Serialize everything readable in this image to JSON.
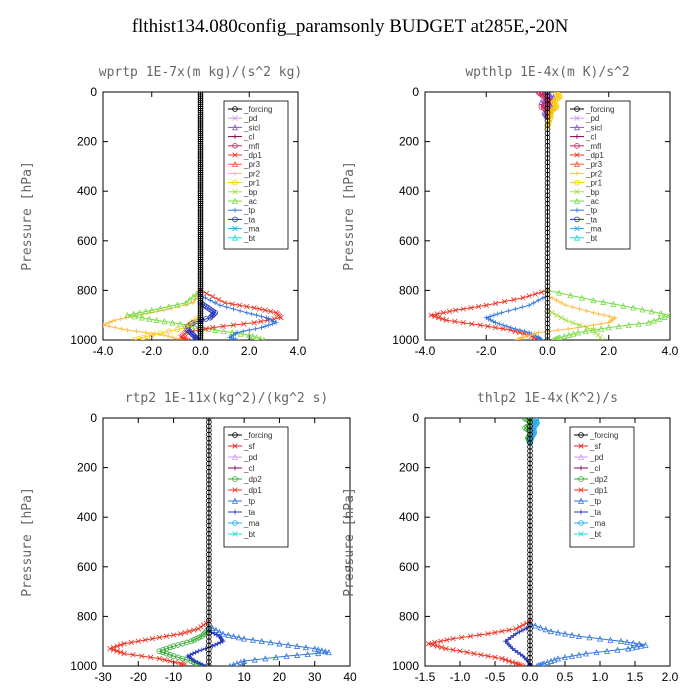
{
  "title": "flthist134.080config_paramsonly  BUDGET at285E,-20N",
  "colors": {
    "forcing": "#000000",
    "pd": "#cc99ee",
    "sicl": "#8855cc",
    "cl": "#880055",
    "mfl": "#cc2255",
    "dp1": "#ee3322",
    "pr3": "#ff5533",
    "pr2": "#ffbb44",
    "pr1": "#ffcc00",
    "bp": "#aadd44",
    "ac": "#77dd44",
    "tp": "#3377dd",
    "ta": "#2233bb",
    "ma": "#22aaee",
    "bt": "#22dddd",
    "sf": "#dd2222",
    "dp2": "#33aa33"
  },
  "chart_data": [
    {
      "type": "line",
      "title": "wprtp  1E-7x(m kg)/(s^2 kg)",
      "ylabel": "Pressure [hPa]",
      "xlim": [
        -4,
        4
      ],
      "ylim": [
        1000,
        0
      ],
      "xticks": [
        -4,
        -2,
        0,
        2,
        4
      ],
      "xticklabels": [
        "-4.0",
        "-2.0",
        "0.0",
        "2.0",
        "4.0"
      ],
      "yticks": [
        0,
        200,
        400,
        600,
        800,
        1000
      ],
      "yticklabels": [
        "0",
        "200",
        "400",
        "600",
        "800",
        "1000"
      ],
      "legend": [
        "_forcing",
        "_pd",
        "_sicl",
        "_cl",
        "_mfl",
        "_dp1",
        "_pr3",
        "_pr2",
        "_pr1",
        "_bp",
        "_ac",
        "_tp",
        "_ta",
        "_ma",
        "_bt"
      ],
      "legend_keys": [
        "forcing",
        "pd",
        "sicl",
        "cl",
        "mfl",
        "dp1",
        "pr3",
        "pr2",
        "pr1",
        "bp",
        "ac",
        "tp",
        "ta",
        "ma",
        "bt"
      ],
      "series": [
        {
          "key": "pr2",
          "p": [
            800,
            850,
            880,
            900,
            920,
            940,
            960,
            980,
            1000
          ],
          "x": [
            0,
            -0.3,
            -1.5,
            -2.6,
            -3.5,
            -4.0,
            -3.0,
            -1.5,
            -0.8
          ]
        },
        {
          "key": "ac",
          "p": [
            800,
            850,
            880,
            900,
            920,
            940,
            960,
            980,
            1000
          ],
          "x": [
            0,
            -0.6,
            -2.0,
            -3.0,
            -1.8,
            -0.5,
            0.6,
            2.0,
            2.6
          ]
        },
        {
          "key": "dp1",
          "p": [
            800,
            850,
            870,
            890,
            910,
            930,
            950,
            970,
            990,
            1000
          ],
          "x": [
            0,
            1.0,
            2.2,
            3.1,
            3.3,
            2.2,
            0.5,
            -0.6,
            -0.8,
            -0.5
          ]
        },
        {
          "key": "tp",
          "p": [
            820,
            860,
            890,
            910,
            930,
            950,
            970,
            990,
            1000
          ],
          "x": [
            0,
            0.8,
            1.9,
            2.7,
            3.1,
            2.5,
            1.5,
            1.2,
            1.5
          ]
        },
        {
          "key": "ta",
          "p": [
            850,
            870,
            890,
            910,
            930,
            950,
            970,
            990,
            1000
          ],
          "x": [
            0,
            0.3,
            0.6,
            0.4,
            -0.3,
            -0.6,
            -0.4,
            -0.2,
            -0.1
          ]
        },
        {
          "key": "pr1",
          "p": [
            900,
            950,
            980,
            1000
          ],
          "x": [
            0,
            -0.6,
            -2.0,
            -2.7
          ]
        },
        {
          "key": "forcing",
          "p": [
            0,
            100,
            200,
            300,
            400,
            500,
            600,
            700,
            800,
            900,
            1000
          ],
          "x": [
            0,
            0,
            0,
            0,
            0,
            0,
            0,
            0,
            0,
            0,
            0
          ]
        }
      ]
    },
    {
      "type": "line",
      "title": "wpthlp  1E-4x(m K)/s^2",
      "ylabel": "Pressure [hPa]",
      "xlim": [
        -4,
        4
      ],
      "ylim": [
        1000,
        0
      ],
      "xticks": [
        -4,
        -2,
        0,
        2,
        4
      ],
      "xticklabels": [
        "-4.0",
        "-2.0",
        "0.0",
        "2.0",
        "4.0"
      ],
      "yticks": [
        0,
        200,
        400,
        600,
        800,
        1000
      ],
      "yticklabels": [
        "0",
        "200",
        "400",
        "600",
        "800",
        "1000"
      ],
      "legend": [
        "_forcing",
        "_pd",
        "_sicl",
        "_cl",
        "_mfl",
        "_dp1",
        "_pr3",
        "_pr2",
        "_pr1",
        "_bp",
        "_ac",
        "_tp",
        "_ta",
        "_ma",
        "_bt"
      ],
      "legend_keys": [
        "forcing",
        "pd",
        "sicl",
        "cl",
        "mfl",
        "dp1",
        "pr3",
        "pr2",
        "pr1",
        "bp",
        "ac",
        "tp",
        "ta",
        "ma",
        "bt"
      ],
      "series": [
        {
          "key": "dp1",
          "p": [
            800,
            830,
            860,
            880,
            900,
            920,
            940,
            960,
            980,
            1000
          ],
          "x": [
            0,
            -0.8,
            -2.0,
            -3.0,
            -3.8,
            -3.3,
            -2.2,
            -1.2,
            -0.6,
            -0.3
          ]
        },
        {
          "key": "tp",
          "p": [
            820,
            860,
            890,
            910,
            930,
            950,
            970,
            990,
            1000
          ],
          "x": [
            0,
            -0.6,
            -1.5,
            -2.0,
            -1.7,
            -1.2,
            -0.6,
            -0.3,
            -0.2
          ]
        },
        {
          "key": "pr2",
          "p": [
            820,
            860,
            890,
            910,
            930,
            950,
            970,
            990,
            1000
          ],
          "x": [
            0,
            0.6,
            1.5,
            2.2,
            2.0,
            1.0,
            -0.3,
            -0.8,
            -1.0
          ]
        },
        {
          "key": "ac",
          "p": [
            800,
            840,
            870,
            900,
            930,
            950,
            970,
            990,
            1000
          ],
          "x": [
            0,
            1.5,
            2.8,
            4.0,
            3.3,
            2.0,
            1.0,
            0.4,
            0.2
          ]
        },
        {
          "key": "bp",
          "p": [
            880,
            920,
            960,
            1000
          ],
          "x": [
            0,
            0.6,
            1.5,
            1.8
          ]
        },
        {
          "key": "sicl",
          "p": [
            0,
            20,
            40,
            60,
            80,
            100
          ],
          "x": [
            -0.2,
            0.2,
            -0.2,
            0.2,
            -0.1,
            0
          ]
        },
        {
          "key": "mfl",
          "p": [
            0,
            20,
            40,
            60,
            80,
            100
          ],
          "x": [
            -0.3,
            -0.1,
            0.1,
            -0.2,
            0.1,
            0
          ]
        },
        {
          "key": "pr1",
          "p": [
            0,
            20,
            40,
            60,
            80,
            100,
            140
          ],
          "x": [
            0.3,
            0.4,
            0.2,
            0.3,
            0.1,
            0.1,
            0
          ]
        },
        {
          "key": "forcing",
          "p": [
            0,
            200,
            400,
            600,
            800,
            1000
          ],
          "x": [
            0,
            0,
            0,
            0,
            0,
            0
          ]
        }
      ]
    },
    {
      "type": "line",
      "title": "rtp2  1E-11x(kg^2)/(kg^2 s)",
      "ylabel": "Pressure [hPa]",
      "xlim": [
        -30,
        40
      ],
      "ylim": [
        1000,
        0
      ],
      "xticks": [
        -30,
        -20,
        -10,
        0,
        10,
        20,
        30,
        40
      ],
      "xticklabels": [
        "-30",
        "-20",
        "-10",
        "0",
        "10",
        "20",
        "30",
        "40"
      ],
      "yticks": [
        0,
        200,
        400,
        600,
        800,
        1000
      ],
      "yticklabels": [
        "0",
        "200",
        "400",
        "600",
        "800",
        "1000"
      ],
      "legend": [
        "_forcing",
        "_sf",
        "_pd",
        "_cl",
        "_dp2",
        "_dp1",
        "_tp",
        "_ta",
        "_ma",
        "_bt"
      ],
      "legend_keys": [
        "forcing",
        "sf",
        "pd",
        "cl",
        "dp2",
        "dp1",
        "tp",
        "ta",
        "ma",
        "bt"
      ],
      "series": [
        {
          "key": "dp1",
          "p": [
            820,
            850,
            870,
            890,
            910,
            930,
            950,
            970,
            990,
            1000
          ],
          "x": [
            0,
            -3,
            -8,
            -16,
            -24,
            -28,
            -24,
            -14,
            -8,
            -7
          ]
        },
        {
          "key": "dp2",
          "p": [
            850,
            880,
            900,
            920,
            940,
            960,
            980,
            1000
          ],
          "x": [
            0,
            -2,
            -5,
            -10,
            -14,
            -10,
            -5,
            -2
          ]
        },
        {
          "key": "tp",
          "p": [
            840,
            870,
            890,
            910,
            930,
            945,
            960,
            980,
            1000
          ],
          "x": [
            0,
            4,
            10,
            20,
            30,
            34,
            22,
            10,
            6
          ]
        },
        {
          "key": "ta",
          "p": [
            860,
            880,
            900,
            920,
            940,
            960,
            980,
            1000
          ],
          "x": [
            0,
            3,
            4,
            1,
            -3,
            -6,
            -4,
            -1
          ]
        },
        {
          "key": "forcing",
          "p": [
            0,
            200,
            400,
            600,
            800,
            1000
          ],
          "x": [
            0,
            0,
            0,
            0,
            0,
            0
          ]
        }
      ]
    },
    {
      "type": "line",
      "title": "thlp2  1E-4x(K^2)/s",
      "ylabel": "Pressure [hPa]",
      "xlim": [
        -1.5,
        2.0
      ],
      "ylim": [
        1000,
        0
      ],
      "xticks": [
        -1.5,
        -1.0,
        -0.5,
        0,
        0.5,
        1.0,
        1.5,
        2.0
      ],
      "xticklabels": [
        "-1.5",
        "-1.0",
        "-0.5",
        "0.0",
        "0.5",
        "1.0",
        "1.5",
        "2.0"
      ],
      "yticks": [
        0,
        200,
        400,
        600,
        800,
        1000
      ],
      "yticklabels": [
        "0",
        "200",
        "400",
        "600",
        "800",
        "1000"
      ],
      "legend": [
        "_forcing",
        "_sf",
        "_pd",
        "_cl",
        "_dp2",
        "_dp1",
        "_tp",
        "_ta",
        "_ma",
        "_bt"
      ],
      "legend_keys": [
        "forcing",
        "sf",
        "pd",
        "cl",
        "dp2",
        "dp1",
        "tp",
        "ta",
        "ma",
        "bt"
      ],
      "series": [
        {
          "key": "dp1",
          "p": [
            820,
            850,
            870,
            890,
            910,
            930,
            950,
            970,
            990,
            1000
          ],
          "x": [
            0,
            -0.2,
            -0.6,
            -1.1,
            -1.45,
            -1.2,
            -0.8,
            -0.4,
            -0.2,
            -0.1
          ]
        },
        {
          "key": "tp",
          "p": [
            830,
            860,
            880,
            900,
            915,
            930,
            950,
            970,
            990,
            1000
          ],
          "x": [
            0,
            0.3,
            0.7,
            1.3,
            1.65,
            1.4,
            0.8,
            0.4,
            0.2,
            0.1
          ]
        },
        {
          "key": "ta",
          "p": [
            840,
            870,
            900,
            930,
            960,
            990,
            1000
          ],
          "x": [
            0,
            -0.2,
            -0.35,
            -0.25,
            -0.1,
            0,
            0
          ]
        },
        {
          "key": "dp2",
          "p": [
            0,
            20,
            40,
            60,
            80,
            100
          ],
          "x": [
            -0.08,
            0.04,
            -0.07,
            0.03,
            -0.03,
            0
          ]
        },
        {
          "key": "ma",
          "p": [
            0,
            20,
            40,
            60,
            80,
            100
          ],
          "x": [
            0.08,
            0.1,
            0.05,
            0.06,
            0.02,
            0
          ]
        },
        {
          "key": "forcing",
          "p": [
            0,
            200,
            400,
            600,
            800,
            1000
          ],
          "x": [
            0,
            0,
            0,
            0,
            0,
            0
          ]
        }
      ]
    }
  ]
}
